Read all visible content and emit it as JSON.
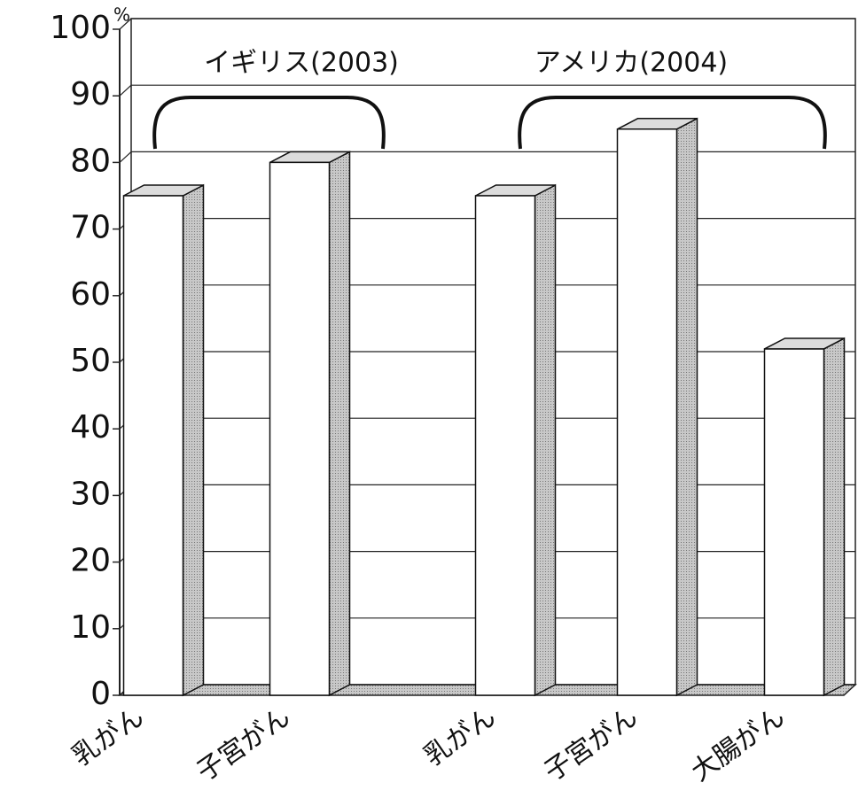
{
  "chart_data": {
    "type": "bar3d",
    "unit": "%",
    "categories": [
      "乳がん",
      "子宮がん",
      "乳がん",
      "子宮がん",
      "大腸がん"
    ],
    "values": [
      75,
      80,
      75,
      85,
      52
    ],
    "annotations": [
      "イギリス(2003)",
      "アメリカ(2004)"
    ],
    "ylim": [
      0,
      100
    ],
    "yticks": [
      0,
      10,
      20,
      30,
      40,
      50,
      60,
      70,
      80,
      90,
      100
    ],
    "grid": true,
    "color": "#ffffff",
    "side_color": "#a8a8a8",
    "top_color": "#dcdcdc"
  }
}
